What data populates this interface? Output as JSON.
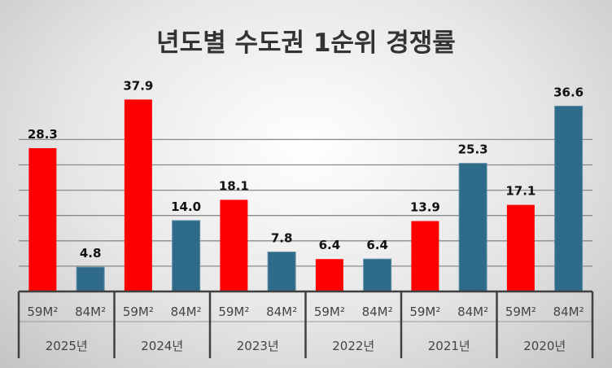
{
  "chart_data": {
    "type": "bar",
    "title": "년도별 수도권 1순위 경쟁률",
    "xlabel": "",
    "ylabel": "",
    "ylim": [
      0,
      40
    ],
    "grid": true,
    "groups": [
      "2025년",
      "2024년",
      "2023년",
      "2022년",
      "2021년",
      "2020년"
    ],
    "sub_categories": [
      "59M²",
      "84M²"
    ],
    "series": [
      {
        "name": "59M²",
        "color": "#ff0000",
        "values": [
          28.3,
          37.9,
          18.1,
          6.4,
          13.9,
          17.1
        ]
      },
      {
        "name": "84M²",
        "color": "#2e6b8a",
        "values": [
          4.8,
          14.0,
          7.8,
          6.4,
          25.3,
          36.6
        ]
      }
    ],
    "data_labels": [
      [
        "28.3",
        "37.9",
        "18.1",
        "6.4",
        "13.9",
        "17.1"
      ],
      [
        "4.8",
        "14.0",
        "7.8",
        "6.4",
        "25.3",
        "36.6"
      ]
    ]
  }
}
